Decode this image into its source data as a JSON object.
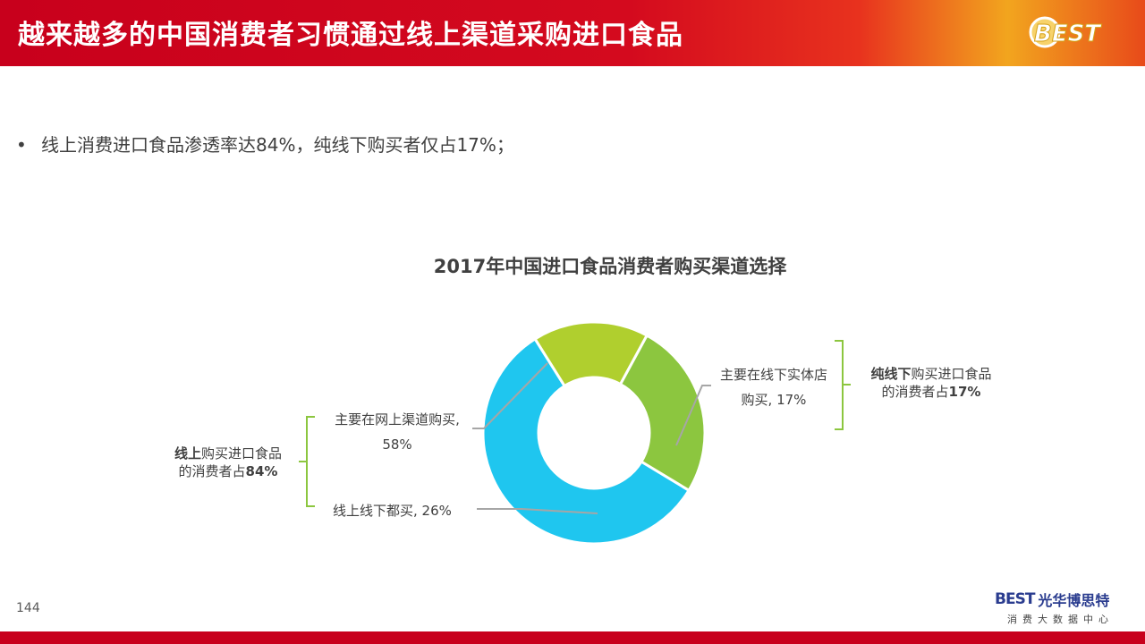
{
  "header": {
    "title": "越来越多的中国消费者习惯通过线上渠道采购进口食品",
    "logo_text": "BEST"
  },
  "bullet": {
    "marker": "•",
    "text": "线上消费进口食品渗透率达84%，纯线下购买者仅占17%；"
  },
  "chart_data": {
    "type": "pie",
    "title": "2017年中国进口食品消费者购买渠道选择",
    "slices": [
      {
        "label": "主要在网上渠道购买",
        "value": 58,
        "color": "#1fc6ef"
      },
      {
        "label": "主要在线下实体店购买",
        "value": 17,
        "color": "#b0cf2e"
      },
      {
        "label": "线上线下都买",
        "value": 26,
        "color": "#8cc63f"
      }
    ],
    "slice_labels": [
      {
        "line1": "主要在网上渠道购买,",
        "line2": "58%"
      },
      {
        "line1": "主要在线下实体店",
        "line2": "购买, 17%"
      },
      {
        "line1": "线上线下都买, 26%"
      }
    ],
    "groups": [
      {
        "bold": "线上",
        "rest": "购买进口食品",
        "line2_plain": "的消费者占",
        "line2_bold": "84%"
      },
      {
        "bold": "纯线下",
        "rest": "购买进口食品",
        "line2_plain": "的消费者占",
        "line2_bold": "17%"
      }
    ]
  },
  "footer": {
    "page_number": "144",
    "brand_best": "BEST",
    "brand_cn": "光华博思特",
    "brand_sub": "消费大数据中心"
  },
  "colors": {
    "header_red": "#c8001c",
    "leader_gray": "#a6a6a6",
    "bracket_green": "#8cc63f"
  }
}
